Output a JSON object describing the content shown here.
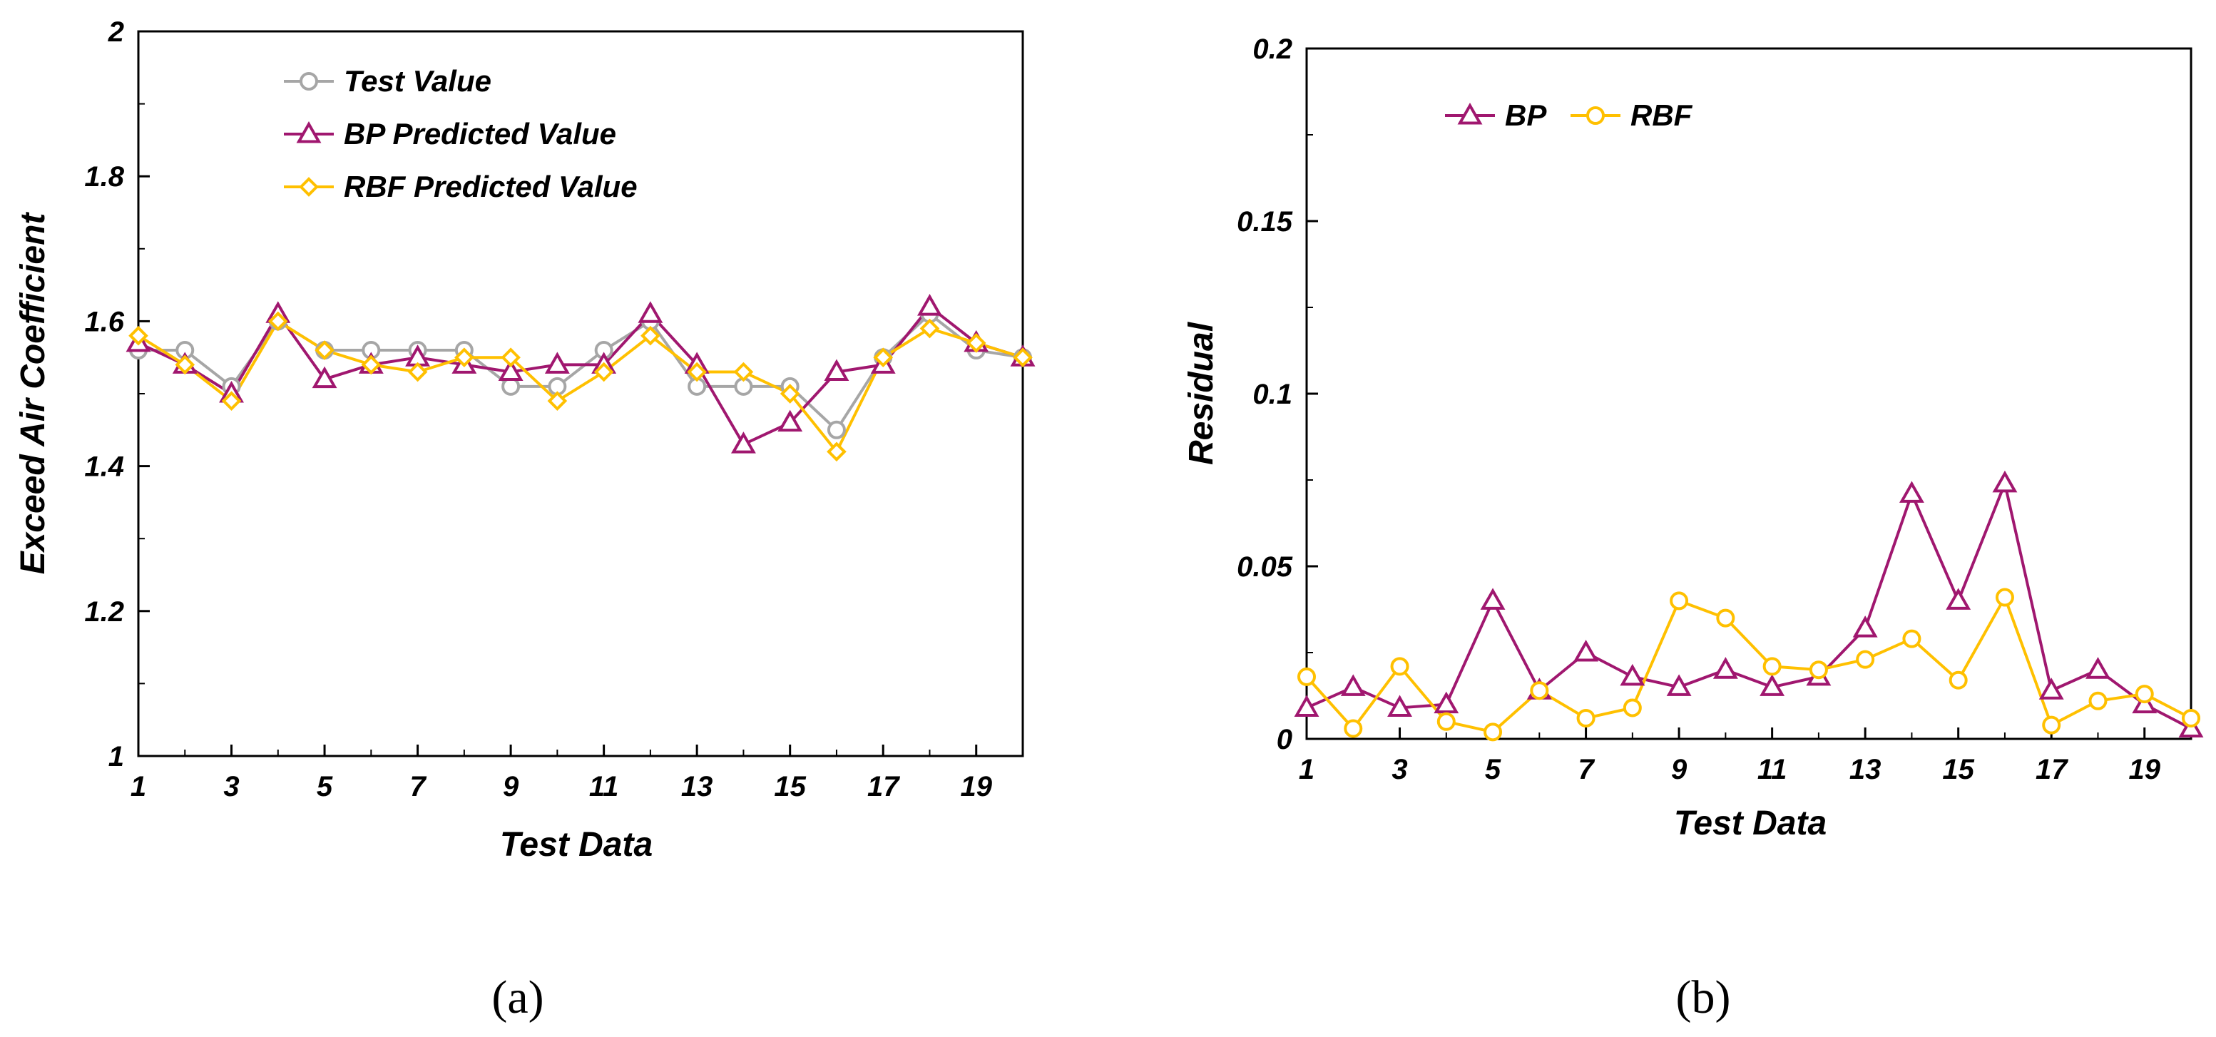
{
  "chart_data": [
    {
      "id": "a",
      "type": "line",
      "panel_label": "(a)",
      "xlabel": "Test Data",
      "ylabel": "Exceed Air Coefficient",
      "xlim": [
        1,
        20
      ],
      "ylim": [
        1,
        2
      ],
      "x_ticks": [
        1,
        3,
        5,
        7,
        9,
        11,
        13,
        15,
        17,
        19
      ],
      "y_ticks": [
        "1",
        "1.2",
        "1.4",
        "1.6",
        "1.8",
        "2"
      ],
      "legend_position": "top-center",
      "x": [
        1,
        2,
        3,
        4,
        5,
        6,
        7,
        8,
        9,
        10,
        11,
        12,
        13,
        14,
        15,
        16,
        17,
        18,
        19,
        20
      ],
      "series": [
        {
          "name": "Test Value",
          "marker": "circle",
          "color": "#a6a6a6",
          "values": [
            1.56,
            1.56,
            1.51,
            1.6,
            1.56,
            1.56,
            1.56,
            1.56,
            1.51,
            1.51,
            1.56,
            1.6,
            1.51,
            1.51,
            1.51,
            1.45,
            1.55,
            1.61,
            1.56,
            1.55
          ]
        },
        {
          "name": "BP Predicted Value",
          "marker": "triangle",
          "color": "#a0176f",
          "values": [
            1.57,
            1.54,
            1.5,
            1.61,
            1.52,
            1.54,
            1.55,
            1.54,
            1.53,
            1.54,
            1.54,
            1.61,
            1.54,
            1.43,
            1.46,
            1.53,
            1.54,
            1.62,
            1.57,
            1.55
          ]
        },
        {
          "name": "RBF Predicted Value",
          "marker": "diamond",
          "color": "#ffc000",
          "values": [
            1.58,
            1.54,
            1.49,
            1.6,
            1.56,
            1.54,
            1.53,
            1.55,
            1.55,
            1.49,
            1.53,
            1.58,
            1.53,
            1.53,
            1.5,
            1.42,
            1.55,
            1.59,
            1.57,
            1.55
          ]
        }
      ]
    },
    {
      "id": "b",
      "type": "line",
      "panel_label": "(b)",
      "xlabel": "Test Data",
      "ylabel": "Residual",
      "xlim": [
        1,
        20
      ],
      "ylim": [
        0,
        0.2
      ],
      "x_ticks": [
        1,
        3,
        5,
        7,
        9,
        11,
        13,
        15,
        17,
        19
      ],
      "y_ticks": [
        "0",
        "0.05",
        "0.1",
        "0.15",
        "0.2"
      ],
      "legend_position": "top-left",
      "x": [
        1,
        2,
        3,
        4,
        5,
        6,
        7,
        8,
        9,
        10,
        11,
        12,
        13,
        14,
        15,
        16,
        17,
        18,
        19,
        20
      ],
      "series": [
        {
          "name": "BP",
          "marker": "triangle",
          "color": "#a0176f",
          "values": [
            0.009,
            0.015,
            0.009,
            0.01,
            0.04,
            0.014,
            0.025,
            0.018,
            0.015,
            0.02,
            0.015,
            0.018,
            0.032,
            0.071,
            0.04,
            0.074,
            0.014,
            0.02,
            0.01,
            0.003
          ]
        },
        {
          "name": "RBF",
          "marker": "circle",
          "color": "#ffc000",
          "values": [
            0.018,
            0.003,
            0.021,
            0.005,
            0.002,
            0.014,
            0.006,
            0.009,
            0.04,
            0.035,
            0.021,
            0.02,
            0.023,
            0.029,
            0.017,
            0.041,
            0.004,
            0.011,
            0.013,
            0.006
          ]
        }
      ]
    }
  ]
}
